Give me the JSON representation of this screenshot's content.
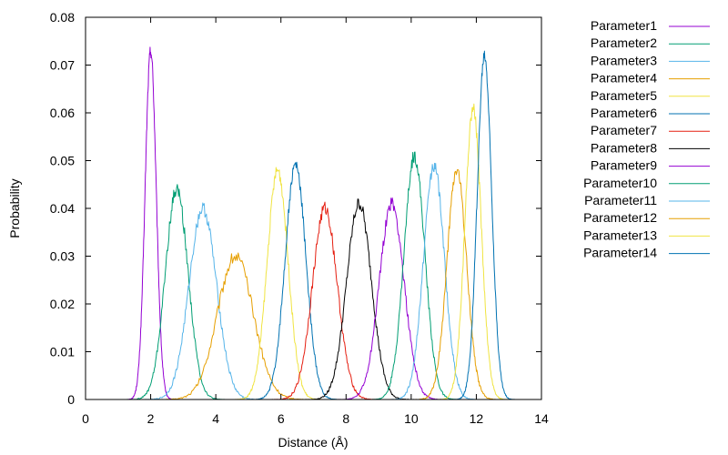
{
  "chart_data": {
    "type": "line",
    "title": "",
    "xlabel": "Distance (Å)",
    "ylabel": "Probability",
    "xlim": [
      0,
      14
    ],
    "ylim": [
      0,
      0.08
    ],
    "xticks": [
      0,
      2,
      4,
      6,
      8,
      10,
      12,
      14
    ],
    "xtick_labels": [
      "0",
      "2",
      "4",
      "6",
      "8",
      "10",
      "12",
      "14"
    ],
    "yticks": [
      0,
      0.01,
      0.02,
      0.03,
      0.04,
      0.05,
      0.06,
      0.07,
      0.08
    ],
    "ytick_labels": [
      "0",
      "0.01",
      "0.02",
      "0.03",
      "0.04",
      "0.05",
      "0.06",
      "0.07",
      "0.08"
    ],
    "grid": false,
    "legend_position": "outside-right",
    "series": [
      {
        "name": "Parameter1",
        "color": "#9400d3",
        "peak_x": 2.0,
        "peak_y": 0.073,
        "sigma": 0.17
      },
      {
        "name": "Parameter2",
        "color": "#009e73",
        "peak_x": 2.8,
        "peak_y": 0.044,
        "sigma": 0.35
      },
      {
        "name": "Parameter3",
        "color": "#56b4e9",
        "peak_x": 3.6,
        "peak_y": 0.04,
        "sigma": 0.42
      },
      {
        "name": "Parameter4",
        "color": "#e69f00",
        "peak_x": 4.6,
        "peak_y": 0.03,
        "sigma": 0.55
      },
      {
        "name": "Parameter5",
        "color": "#f0e442",
        "peak_x": 5.9,
        "peak_y": 0.048,
        "sigma": 0.32
      },
      {
        "name": "Parameter6",
        "color": "#0072b2",
        "peak_x": 6.45,
        "peak_y": 0.049,
        "sigma": 0.32
      },
      {
        "name": "Parameter7",
        "color": "#e51e10",
        "peak_x": 7.35,
        "peak_y": 0.04,
        "sigma": 0.38
      },
      {
        "name": "Parameter8",
        "color": "#000000",
        "peak_x": 8.4,
        "peak_y": 0.041,
        "sigma": 0.38
      },
      {
        "name": "Parameter9",
        "color": "#9400d3",
        "peak_x": 9.4,
        "peak_y": 0.041,
        "sigma": 0.38
      },
      {
        "name": "Parameter10",
        "color": "#009e73",
        "peak_x": 10.1,
        "peak_y": 0.051,
        "sigma": 0.32
      },
      {
        "name": "Parameter11",
        "color": "#56b4e9",
        "peak_x": 10.7,
        "peak_y": 0.049,
        "sigma": 0.32
      },
      {
        "name": "Parameter12",
        "color": "#e69f00",
        "peak_x": 11.4,
        "peak_y": 0.048,
        "sigma": 0.3
      },
      {
        "name": "Parameter13",
        "color": "#f0e442",
        "peak_x": 11.9,
        "peak_y": 0.061,
        "sigma": 0.25
      },
      {
        "name": "Parameter14",
        "color": "#0072b2",
        "peak_x": 12.25,
        "peak_y": 0.072,
        "sigma": 0.22
      }
    ]
  }
}
